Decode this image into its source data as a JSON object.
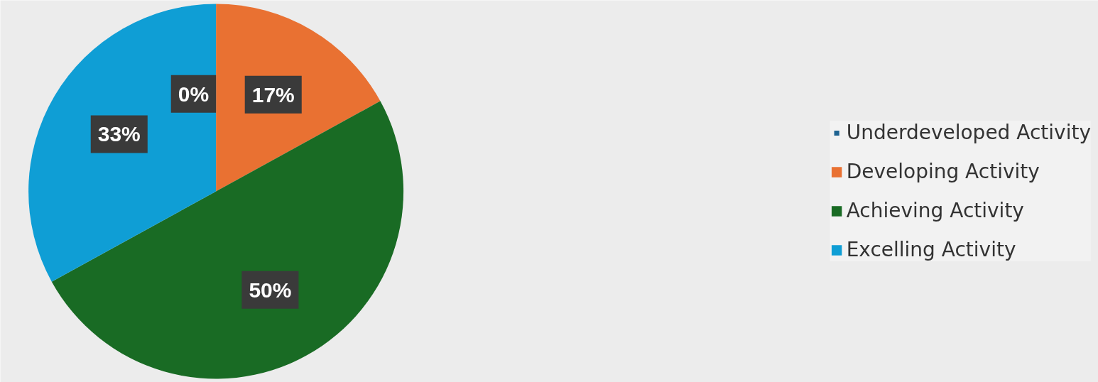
{
  "chart_data": {
    "type": "pie",
    "categories": [
      "Underdeveloped Activity",
      "Developing Activity",
      "Achieving Activity",
      "Excelling Activity"
    ],
    "values": [
      0,
      17,
      50,
      33
    ],
    "colors": [
      "#1f6391",
      "#e97132",
      "#196b24",
      "#0f9ed5"
    ],
    "value_labels": [
      "0%",
      "17%",
      "50%",
      "33%"
    ],
    "legend": "right"
  }
}
